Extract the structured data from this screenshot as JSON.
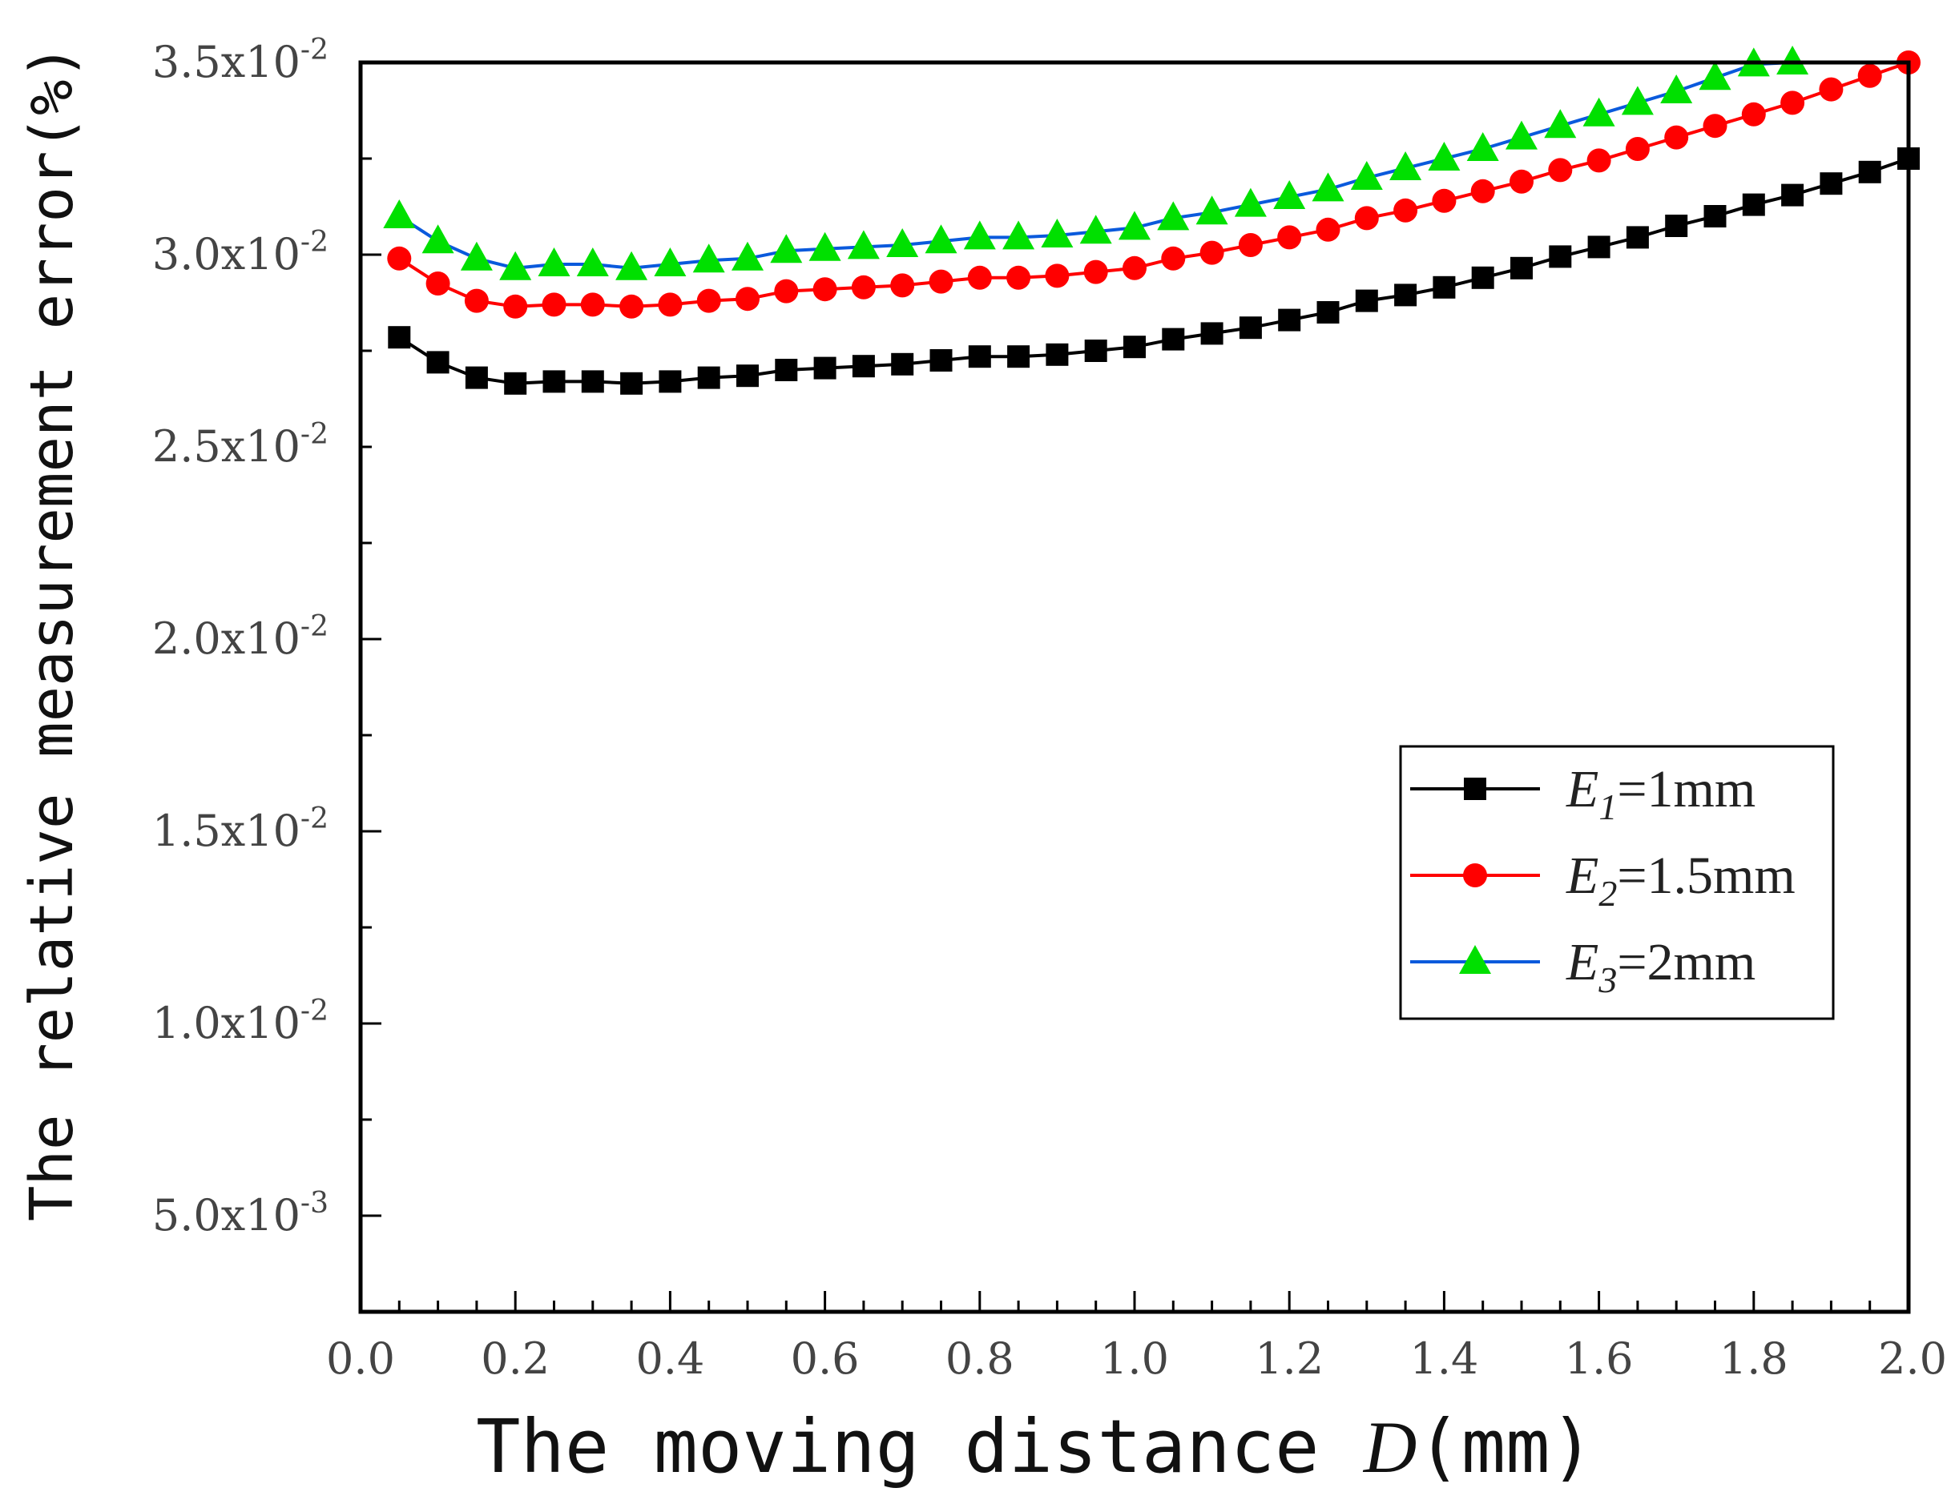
{
  "chart_data": {
    "type": "line",
    "xlabel": "The moving distance D(mm)",
    "xlabel_prefix": "The moving distance ",
    "xlabel_var": "D",
    "xlabel_suffix": "(mm)",
    "ylabel": "The relative measurement error(%)",
    "xlim": [
      0.0,
      2.0
    ],
    "ylim": [
      0.0025,
      0.035
    ],
    "xticks": [
      "0.0",
      "0.2",
      "0.4",
      "0.6",
      "0.8",
      "1.0",
      "1.2",
      "1.4",
      "1.6",
      "1.8",
      "2.0"
    ],
    "yticks": [
      {
        "value": 0.005,
        "mantissa": "5.0x10",
        "exp": "-3"
      },
      {
        "value": 0.01,
        "mantissa": "1.0x10",
        "exp": "-2"
      },
      {
        "value": 0.015,
        "mantissa": "1.5x10",
        "exp": "-2"
      },
      {
        "value": 0.02,
        "mantissa": "2.0x10",
        "exp": "-2"
      },
      {
        "value": 0.025,
        "mantissa": "2.5x10",
        "exp": "-2"
      },
      {
        "value": 0.03,
        "mantissa": "3.0x10",
        "exp": "-2"
      },
      {
        "value": 0.035,
        "mantissa": "3.5x10",
        "exp": "-2"
      }
    ],
    "x": [
      0.05,
      0.1,
      0.15,
      0.2,
      0.25,
      0.3,
      0.35,
      0.4,
      0.45,
      0.5,
      0.55,
      0.6,
      0.65,
      0.7,
      0.75,
      0.8,
      0.85,
      0.9,
      0.95,
      1.0,
      1.05,
      1.1,
      1.15,
      1.2,
      1.25,
      1.3,
      1.35,
      1.4,
      1.45,
      1.5,
      1.55,
      1.6,
      1.65,
      1.7,
      1.75,
      1.8,
      1.85,
      1.9,
      1.95,
      2.0
    ],
    "series": [
      {
        "name": "E1=1mm",
        "var": "E",
        "sub": "1",
        "value": "=1mm",
        "color": "#000000",
        "marker": "square",
        "values": [
          0.02785,
          0.0272,
          0.0268,
          0.02665,
          0.0267,
          0.0267,
          0.02665,
          0.0267,
          0.0268,
          0.02685,
          0.027,
          0.02705,
          0.0271,
          0.02715,
          0.02725,
          0.02735,
          0.02735,
          0.0274,
          0.0275,
          0.0276,
          0.0278,
          0.02795,
          0.0281,
          0.0283,
          0.0285,
          0.0288,
          0.02895,
          0.02915,
          0.0294,
          0.02965,
          0.02995,
          0.0302,
          0.03045,
          0.03075,
          0.031,
          0.0313,
          0.03155,
          0.03185,
          0.03215,
          0.0325
        ]
      },
      {
        "name": "E2=1.5mm",
        "var": "E",
        "sub": "2",
        "value": "=1.5mm",
        "color": "#ff0000",
        "marker": "circle",
        "values": [
          0.0299,
          0.02925,
          0.0288,
          0.02865,
          0.0287,
          0.0287,
          0.02865,
          0.0287,
          0.0288,
          0.02885,
          0.02905,
          0.0291,
          0.02915,
          0.0292,
          0.0293,
          0.0294,
          0.0294,
          0.02945,
          0.02955,
          0.02965,
          0.0299,
          0.03005,
          0.03025,
          0.03045,
          0.03065,
          0.03095,
          0.03115,
          0.0314,
          0.03165,
          0.0319,
          0.0322,
          0.03245,
          0.03275,
          0.03305,
          0.03335,
          0.03365,
          0.03395,
          0.0343,
          0.03465,
          0.035
        ]
      },
      {
        "name": "E3=2mm",
        "var": "E",
        "sub": "3",
        "value": "=2mm",
        "color": "#0a5adc",
        "marker": "triangle",
        "marker_color": "#00e000",
        "values": [
          0.031,
          0.03035,
          0.0299,
          0.02965,
          0.02975,
          0.02975,
          0.02965,
          0.02975,
          0.02985,
          0.0299,
          0.0301,
          0.03015,
          0.0302,
          0.03025,
          0.03035,
          0.03045,
          0.03045,
          0.0305,
          0.0306,
          0.0307,
          0.03095,
          0.0311,
          0.0313,
          0.0315,
          0.0317,
          0.032,
          0.03225,
          0.0325,
          0.03275,
          0.03305,
          0.03335,
          0.03365,
          0.03395,
          0.03425,
          0.0346,
          0.03495,
          0.035,
          null,
          null,
          null
        ]
      }
    ],
    "legend_position": "right-middle",
    "grid": false
  }
}
